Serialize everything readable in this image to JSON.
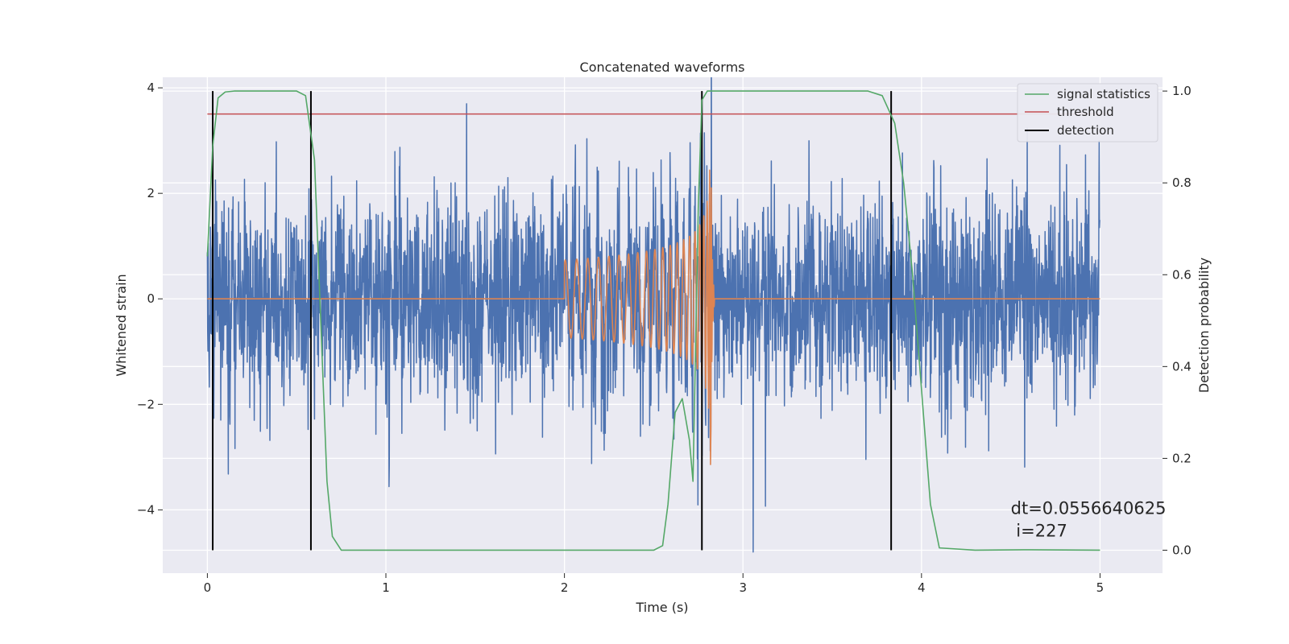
{
  "chart_data": {
    "type": "line",
    "title": "Concatenated waveforms",
    "xlabel": "Time (s)",
    "ylabel": "Whitened strain",
    "y2label": "Detection probability",
    "xlim": [
      -0.25,
      5.35
    ],
    "ylim": [
      -5.2,
      4.2
    ],
    "y2lim": [
      -0.05,
      1.03
    ],
    "xticks": [
      0,
      1,
      2,
      3,
      4,
      5
    ],
    "xtick_labels": [
      "0",
      "1",
      "2",
      "3",
      "4",
      "5"
    ],
    "yticks": [
      -4,
      -2,
      0,
      2,
      4
    ],
    "ytick_labels": [
      "−4",
      "−2",
      "0",
      "2",
      "4"
    ],
    "y2ticks": [
      0.0,
      0.2,
      0.4,
      0.6,
      0.8,
      1.0
    ],
    "y2tick_labels": [
      "0.0",
      "0.2",
      "0.4",
      "0.6",
      "0.8",
      "1.0"
    ],
    "grid": true,
    "legend_position": "top-right",
    "series": [
      {
        "name": "",
        "kind": "strain-noise",
        "axis": "left",
        "color": "#4c72b0",
        "x_range": [
          0,
          5
        ],
        "approx_std": 0.95,
        "approx_range": [
          -4.8,
          3.75
        ]
      },
      {
        "name": "",
        "kind": "injected-chirp",
        "axis": "left",
        "color": "#dd8452",
        "x_range": [
          0,
          5
        ],
        "chirp_start": 2.0,
        "merger": 2.82,
        "approx_peak": 3.75,
        "approx_trough": -3.6
      }
    ],
    "signal_statistics": {
      "name": "signal statistics",
      "axis": "right",
      "color": "#55a868",
      "x": [
        0.0,
        0.03,
        0.06,
        0.1,
        0.15,
        0.5,
        0.55,
        0.6,
        0.63,
        0.67,
        0.7,
        0.75,
        2.5,
        2.55,
        2.58,
        2.62,
        2.66,
        2.7,
        2.72,
        2.75,
        2.77,
        2.8,
        2.85,
        3.7,
        3.78,
        3.85,
        3.9,
        3.95,
        4.0,
        4.05,
        4.1,
        4.3,
        4.6,
        5.0
      ],
      "values": [
        0.64,
        0.88,
        0.985,
        0.998,
        1.0,
        1.0,
        0.99,
        0.85,
        0.55,
        0.15,
        0.03,
        0.0,
        0.0,
        0.01,
        0.1,
        0.3,
        0.33,
        0.24,
        0.15,
        0.75,
        0.98,
        1.0,
        1.0,
        1.0,
        0.99,
        0.93,
        0.8,
        0.6,
        0.35,
        0.1,
        0.005,
        0.0,
        0.001,
        0.0
      ]
    },
    "threshold": {
      "name": "threshold",
      "axis": "right",
      "color": "#c44e52",
      "value": 0.95,
      "x_range": [
        0,
        5.05
      ]
    },
    "detection": {
      "name": "detection",
      "axis": "right",
      "color": "#000000",
      "x": [
        0.03,
        0.58,
        2.77,
        3.83
      ],
      "y2_range": [
        0.0,
        1.0
      ]
    },
    "annotation": {
      "line1": "dt=0.0556640625",
      "line2": " i=227",
      "x": 4.5,
      "y": -4.0
    }
  }
}
